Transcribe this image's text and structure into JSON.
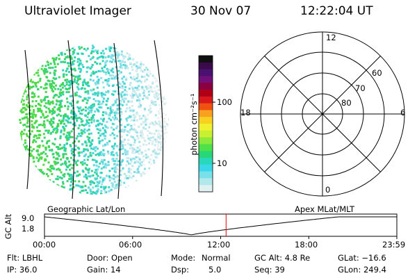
{
  "header": {
    "title": "Ultraviolet Imager",
    "date": "30 Nov 07",
    "time": "12:22:04 UT"
  },
  "colorbar": {
    "label": "photon cm⁻²s⁻¹",
    "ticks": [
      "100",
      "10"
    ],
    "colors": [
      "#101010",
      "#3a0b4a",
      "#4a1270",
      "#72107a",
      "#8a0040",
      "#b00018",
      "#d8181a",
      "#f05010",
      "#f8a020",
      "#f8d020",
      "#f0f030",
      "#c8f030",
      "#8ce83a",
      "#50e04a",
      "#28d878",
      "#28d8b8",
      "#38d8e8",
      "#78e0e8",
      "#b0e8ec",
      "#e0f0f0"
    ]
  },
  "polar": {
    "labels": {
      "top": "12",
      "bottom": "0",
      "left": "18",
      "right": "6"
    },
    "ring_labels": [
      "60",
      "70",
      "80"
    ]
  },
  "timeline": {
    "axis_label": "GC Alt",
    "y_top": "9.0",
    "y_bottom": "1.8",
    "left_caption": "Geographic Lat/Lon",
    "right_caption": "Apex MLat/MLT",
    "ticks": [
      "00:00",
      "06:00",
      "12:00",
      "18:00",
      "23:59"
    ],
    "marker_hours": 12.37,
    "series_color": "#000000",
    "marker_color": "#e00000"
  },
  "info": {
    "filter": "Flt: LBHL",
    "ip": "IP: 36.0",
    "door": "Door: Open",
    "gain": "Gain: 14",
    "mode_label": "Mode:",
    "mode_value": "Normal",
    "dsp_label": "Dsp:",
    "dsp_value": "5.0",
    "gcalt": "GC Alt: 4.8 Re",
    "seq": "Seq: 39",
    "glat": "GLat: −16.6",
    "glon": "GLon: 249.4"
  }
}
